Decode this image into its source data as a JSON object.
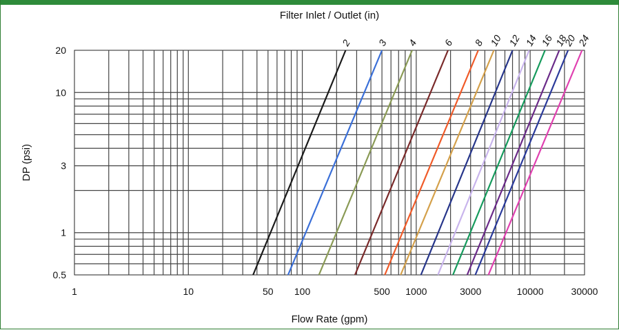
{
  "chart_data": {
    "type": "line",
    "title": "Filter Inlet / Outlet (in)",
    "xlabel": "Flow Rate (gpm)",
    "ylabel": "DP (psi)",
    "x_scale": "log",
    "y_scale": "log",
    "xlim": [
      1,
      30000
    ],
    "ylim": [
      0.5,
      20
    ],
    "x_ticks": [
      "1",
      "10",
      "50",
      "100",
      "500",
      "1000",
      "3000",
      "10000",
      "30000"
    ],
    "x_tick_values": [
      1,
      10,
      50,
      100,
      500,
      1000,
      3000,
      10000,
      30000
    ],
    "y_ticks": [
      "20",
      "10",
      "3",
      "1",
      "0.5"
    ],
    "y_tick_values": [
      20,
      10,
      3,
      1,
      0.5
    ],
    "grid": true,
    "series": [
      {
        "name": "2",
        "color": "#1a1a1a",
        "points": [
          [
            37,
            0.5
          ],
          [
            240,
            20
          ]
        ]
      },
      {
        "name": "3",
        "color": "#3a6fd8",
        "points": [
          [
            75,
            0.5
          ],
          [
            500,
            20
          ]
        ]
      },
      {
        "name": "4",
        "color": "#8a9a55",
        "points": [
          [
            140,
            0.5
          ],
          [
            920,
            20
          ]
        ]
      },
      {
        "name": "6",
        "color": "#7a2a2a",
        "points": [
          [
            290,
            0.5
          ],
          [
            1900,
            20
          ]
        ]
      },
      {
        "name": "8",
        "color": "#f05a28",
        "points": [
          [
            530,
            0.5
          ],
          [
            3500,
            20
          ]
        ]
      },
      {
        "name": "10",
        "color": "#d4a04a",
        "points": [
          [
            730,
            0.5
          ],
          [
            4800,
            20
          ]
        ]
      },
      {
        "name": "12",
        "color": "#26358a",
        "points": [
          [
            1100,
            0.5
          ],
          [
            7000,
            20
          ]
        ]
      },
      {
        "name": "14",
        "color": "#c8b4ec",
        "points": [
          [
            1550,
            0.5
          ],
          [
            9800,
            20
          ]
        ]
      },
      {
        "name": "16",
        "color": "#159a5c",
        "points": [
          [
            2100,
            0.5
          ],
          [
            13500,
            20
          ]
        ]
      },
      {
        "name": "18",
        "color": "#6a2a88",
        "points": [
          [
            2800,
            0.5
          ],
          [
            18000,
            20
          ]
        ]
      },
      {
        "name": "20",
        "color": "#2a3a9a",
        "points": [
          [
            3300,
            0.5
          ],
          [
            21500,
            20
          ]
        ]
      },
      {
        "name": "24",
        "color": "#e040b0",
        "points": [
          [
            4300,
            0.5
          ],
          [
            28500,
            20
          ]
        ]
      }
    ]
  }
}
